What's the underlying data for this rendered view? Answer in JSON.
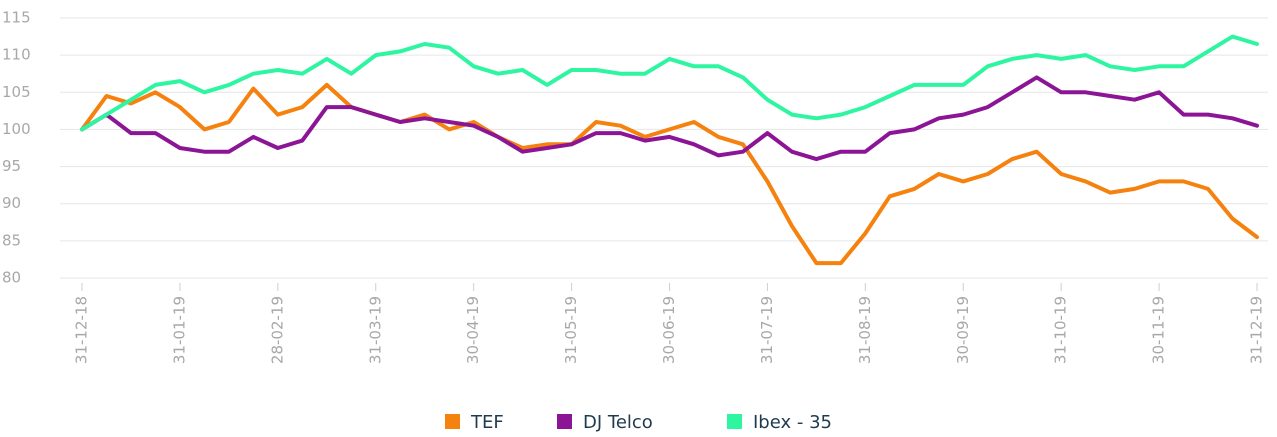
{
  "chart_data": {
    "type": "line",
    "categories": [
      "31-12-18",
      null,
      null,
      null,
      "31-01-19",
      null,
      null,
      null,
      "28-02-19",
      null,
      null,
      null,
      "31-03-19",
      null,
      null,
      null,
      "30-04-19",
      null,
      null,
      null,
      "31-05-19",
      null,
      null,
      null,
      "30-06-19",
      null,
      null,
      null,
      "31-07-19",
      null,
      null,
      null,
      "31-08-19",
      null,
      null,
      null,
      "30-09-19",
      null,
      null,
      null,
      "31-10-19",
      null,
      null,
      null,
      "30-11-19",
      null,
      null,
      null,
      "31-12-19"
    ],
    "series": [
      {
        "name": "TEF",
        "color": "#f5820f",
        "values": [
          100,
          104.5,
          103.5,
          105,
          103,
          100,
          101,
          105.5,
          102,
          103,
          106,
          103,
          102,
          101,
          102,
          100,
          101,
          99,
          97.5,
          98,
          98,
          101,
          100.5,
          99,
          100,
          101,
          99,
          98,
          93,
          87,
          82,
          82,
          86,
          91,
          92,
          94,
          93,
          94,
          96,
          97,
          94,
          93,
          91.5,
          92,
          93,
          93,
          92,
          88,
          85.5
        ]
      },
      {
        "name": "DJ Telco",
        "color": "#8c1596",
        "values": [
          100,
          102,
          99.5,
          99.5,
          97.5,
          97,
          97,
          99,
          97.5,
          98.5,
          103,
          103,
          102,
          101,
          101.5,
          101,
          100.5,
          99,
          97,
          97.5,
          98,
          99.5,
          99.5,
          98.5,
          99,
          98,
          96.5,
          97,
          99.5,
          97,
          96,
          97,
          97,
          99.5,
          100,
          101.5,
          102,
          103,
          105,
          107,
          105,
          105,
          104.5,
          104,
          105,
          102,
          102,
          101.5,
          100.5
        ]
      },
      {
        "name": "Ibex - 35",
        "color": "#2ef5a0",
        "values": [
          100,
          102,
          104,
          106,
          106.5,
          105,
          106,
          107.5,
          108,
          107.5,
          109.5,
          107.5,
          110,
          110.5,
          111.5,
          111,
          108.5,
          107.5,
          108,
          106,
          108,
          108,
          107.5,
          107.5,
          109.5,
          108.5,
          108.5,
          107,
          104,
          102,
          101.5,
          102,
          103,
          104.5,
          106,
          106,
          106,
          108.5,
          109.5,
          110,
          109.5,
          110,
          108.5,
          108,
          108.5,
          108.5,
          110.5,
          112.5,
          111.5
        ]
      }
    ],
    "ylim": [
      80,
      115
    ],
    "yticks": [
      80,
      85,
      90,
      95,
      100,
      105,
      110,
      115
    ],
    "grid": true
  }
}
